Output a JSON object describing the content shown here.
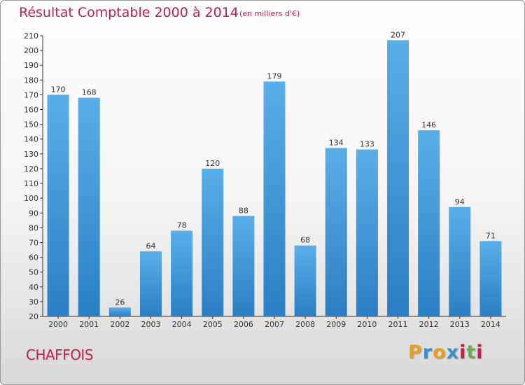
{
  "header": {
    "title": "Résultat Comptable 2000 à 2014",
    "subtitle": "(en milliers d'€)"
  },
  "commune": "CHAFFOIS",
  "logo": {
    "letters": [
      "P",
      "r",
      "o",
      "x",
      "i",
      "t",
      "i"
    ],
    "colors": [
      "#e8a020",
      "#3a8fd0",
      "#e8a020",
      "#3a8fd0",
      "#c0204a",
      "#6ab04c",
      "#c0204a"
    ]
  },
  "colors": {
    "bar_top": "#5aaee8",
    "bar_bottom": "#2a7fc4",
    "title": "#c0204a"
  },
  "chart_data": {
    "type": "bar",
    "title": "Résultat Comptable 2000 à 2014",
    "subtitle": "(en milliers d'€)",
    "categories": [
      "2000",
      "2001",
      "2002",
      "2003",
      "2004",
      "2005",
      "2006",
      "2007",
      "2008",
      "2009",
      "2010",
      "2011",
      "2012",
      "2013",
      "2014"
    ],
    "values": [
      170,
      168,
      26,
      64,
      78,
      120,
      88,
      179,
      68,
      134,
      133,
      207,
      146,
      94,
      71
    ],
    "ylim": [
      20,
      210
    ],
    "yticks": [
      20,
      30,
      40,
      50,
      60,
      70,
      80,
      90,
      100,
      110,
      120,
      130,
      140,
      150,
      160,
      170,
      180,
      190,
      200,
      210
    ],
    "grid": false,
    "data_labels": true
  }
}
